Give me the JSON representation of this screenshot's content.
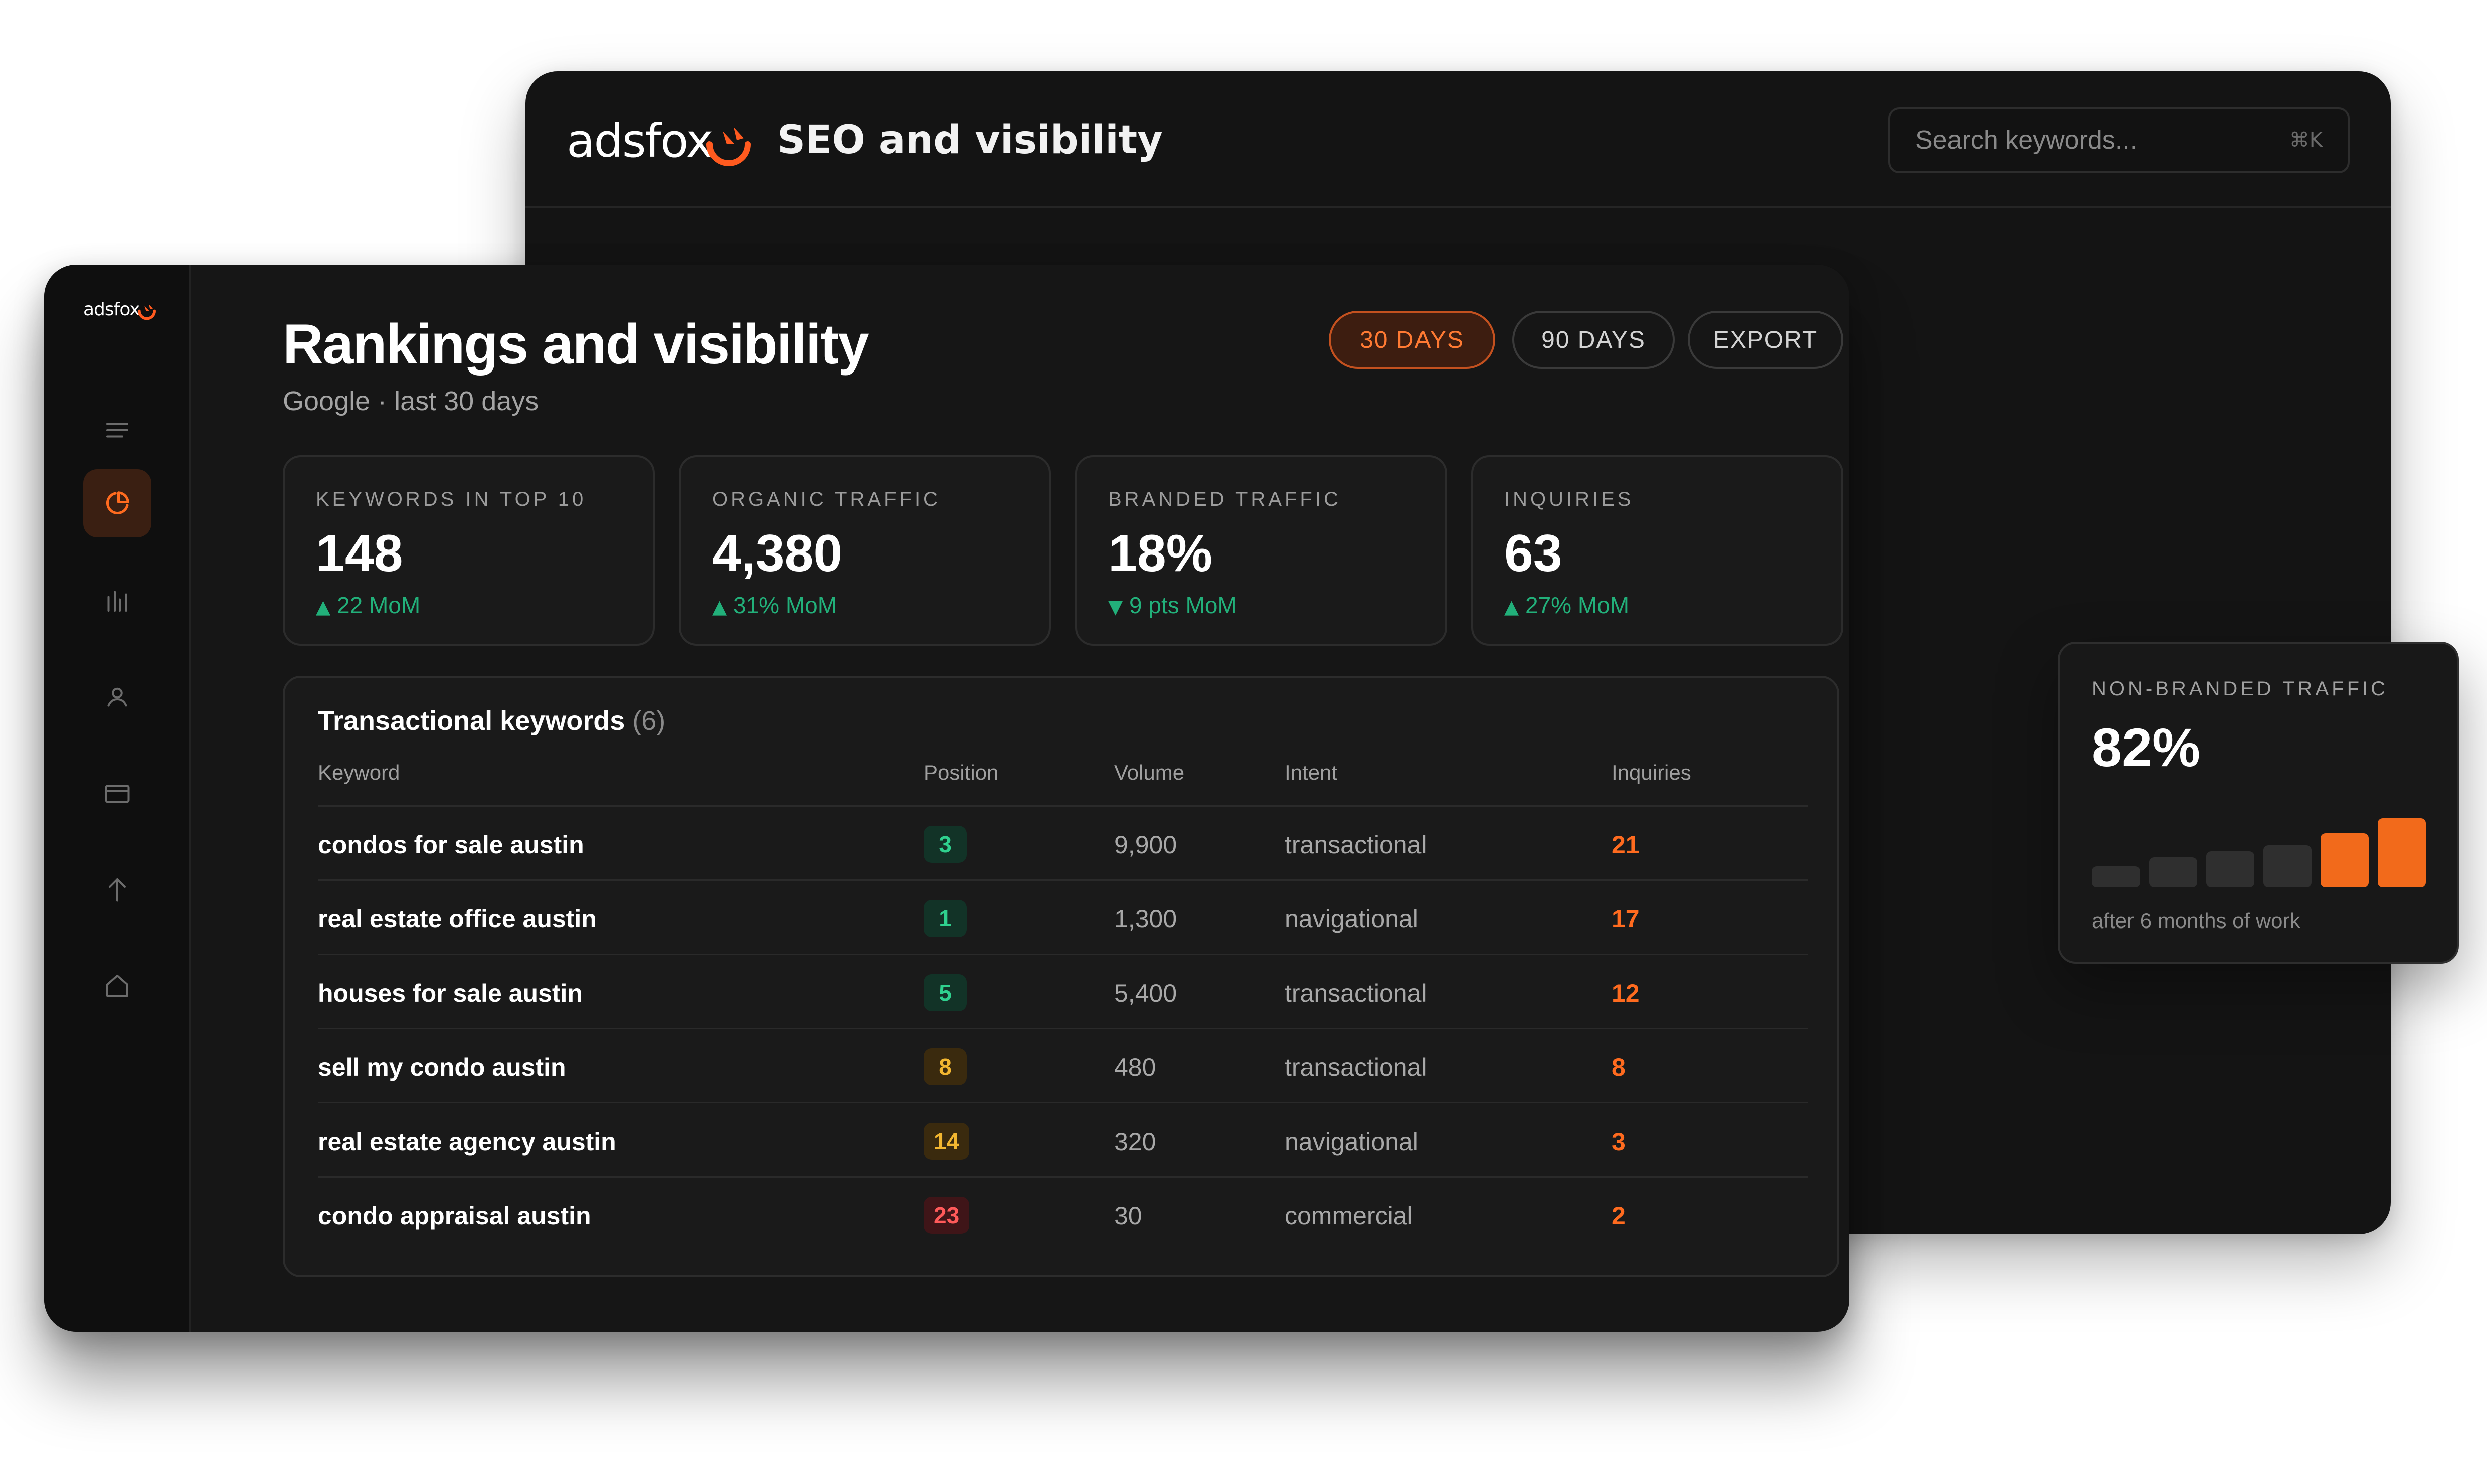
{
  "back_window": {
    "logo_text": "adsfox",
    "title": "SEO and visibility",
    "search": {
      "placeholder": "Search keywords...",
      "shortcut": "⌘K"
    }
  },
  "main_window": {
    "logo_text": "adsfox",
    "nav_icons": [
      "menu-icon",
      "pie-chart-icon",
      "bar-chart-icon",
      "user-icon",
      "card-icon",
      "arrow-up-icon",
      "home-icon"
    ],
    "title": "Rankings and visibility",
    "subtitle": "Google · last 30 days",
    "buttons": {
      "days30": "30 DAYS",
      "days90": "90 DAYS",
      "export": "EXPORT"
    },
    "stats": [
      {
        "label": "KEYWORDS IN TOP 10",
        "value": "148",
        "arrow": "▲",
        "delta": "22 MoM"
      },
      {
        "label": "ORGANIC TRAFFIC",
        "value": "4,380",
        "arrow": "▲",
        "delta": "31% MoM"
      },
      {
        "label": "BRANDED TRAFFIC",
        "value": "18%",
        "arrow": "▼",
        "delta": "9 pts MoM"
      },
      {
        "label": "INQUIRIES",
        "value": "63",
        "arrow": "▲",
        "delta": "27% MoM"
      }
    ],
    "table": {
      "title": "Transactional keywords",
      "count": "(6)",
      "headers": {
        "keyword": "Keyword",
        "position": "Position",
        "volume": "Volume",
        "intent": "Intent",
        "inquiries": "Inquiries"
      },
      "rows": [
        {
          "keyword": "condos for sale austin",
          "position": "3",
          "volume": "9,900",
          "intent": "transactional",
          "inquiries": "21"
        },
        {
          "keyword": "real estate office austin",
          "position": "1",
          "volume": "1,300",
          "intent": "navigational",
          "inquiries": "17"
        },
        {
          "keyword": "houses for sale austin",
          "position": "5",
          "volume": "5,400",
          "intent": "transactional",
          "inquiries": "12"
        },
        {
          "keyword": "sell my condo austin",
          "position": "8",
          "volume": "480",
          "intent": "transactional",
          "inquiries": "8"
        },
        {
          "keyword": "real estate agency austin",
          "position": "14",
          "volume": "320",
          "intent": "navigational",
          "inquiries": "3"
        },
        {
          "keyword": "condo appraisal austin",
          "position": "23",
          "volume": "30",
          "intent": "commercial",
          "inquiries": "2"
        }
      ]
    }
  },
  "float_card": {
    "label": "NON-BRANDED TRAFFIC",
    "value": "82%",
    "caption": "after 6 months of work",
    "bar_levels": [
      0.28,
      0.4,
      0.48,
      0.56,
      0.72,
      0.92
    ]
  },
  "colors": {
    "accent": "#ff6b1f",
    "positive": "#22b07a",
    "bar_inactive": "#2f2f2f",
    "bar_active": "#f26a1b"
  }
}
